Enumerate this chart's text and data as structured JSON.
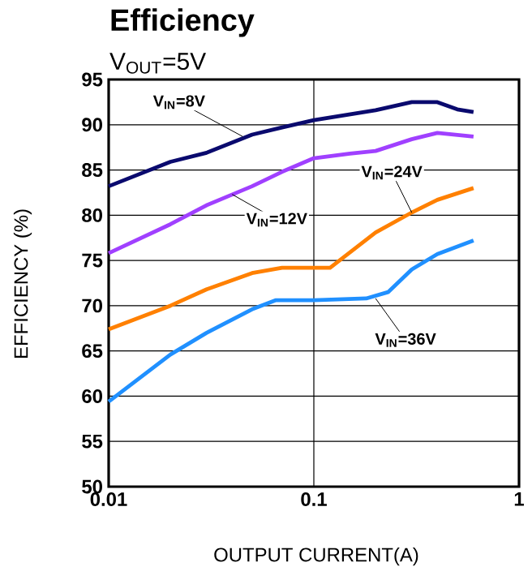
{
  "chart_data": {
    "type": "line",
    "title": "Efficiency",
    "subtitle": "V$_{OUT}$=5V",
    "xlabel": "OUTPUT CURRENT(A)",
    "ylabel": "EFFICIENCY (%)",
    "log": "x",
    "grid": true,
    "xlim": [
      0.01,
      1
    ],
    "ylim": [
      50,
      95
    ],
    "xticks": [
      0.01,
      0.1,
      1
    ],
    "yticks": [
      50,
      55,
      60,
      65,
      70,
      75,
      80,
      85,
      90,
      95
    ],
    "series": [
      {
        "color": "#0a0a6e",
        "x": [
          0.01,
          0.02,
          0.03,
          0.05,
          0.07,
          0.1,
          0.2,
          0.3,
          0.4,
          0.5,
          0.6
        ],
        "values": [
          83.2,
          85.9,
          86.9,
          88.9,
          89.7,
          90.5,
          91.6,
          92.5,
          92.5,
          91.7,
          91.4
        ]
      },
      {
        "color": "#a040ff",
        "x": [
          0.01,
          0.02,
          0.03,
          0.05,
          0.07,
          0.1,
          0.15,
          0.2,
          0.3,
          0.4,
          0.6
        ],
        "values": [
          75.8,
          79.0,
          81.1,
          83.2,
          84.8,
          86.3,
          86.8,
          87.1,
          88.4,
          89.1,
          88.7
        ]
      },
      {
        "color": "#ff8000",
        "x": [
          0.01,
          0.02,
          0.03,
          0.05,
          0.07,
          0.12,
          0.2,
          0.3,
          0.4,
          0.6
        ],
        "values": [
          67.4,
          70.0,
          71.8,
          73.6,
          74.2,
          74.2,
          78.1,
          80.3,
          81.7,
          83.0
        ]
      },
      {
        "color": "#2090ff",
        "x": [
          0.01,
          0.02,
          0.03,
          0.05,
          0.065,
          0.1,
          0.18,
          0.23,
          0.3,
          0.4,
          0.6
        ],
        "values": [
          59.4,
          64.6,
          67.0,
          69.6,
          70.6,
          70.6,
          70.8,
          71.5,
          74.0,
          75.7,
          77.2
        ]
      }
    ],
    "annotations": [
      {
        "text": "V$_{IN}$=8V",
        "x": 0.045,
        "y": 88.7
      },
      {
        "text": "V$_{IN}$=12V",
        "x": 0.04,
        "y": 82.3
      },
      {
        "text": "V$_{IN}$=24V",
        "x": 0.3,
        "y": 80.3
      },
      {
        "text": "V$_{IN}$=36V",
        "x": 0.2,
        "y": 70.8
      }
    ]
  }
}
